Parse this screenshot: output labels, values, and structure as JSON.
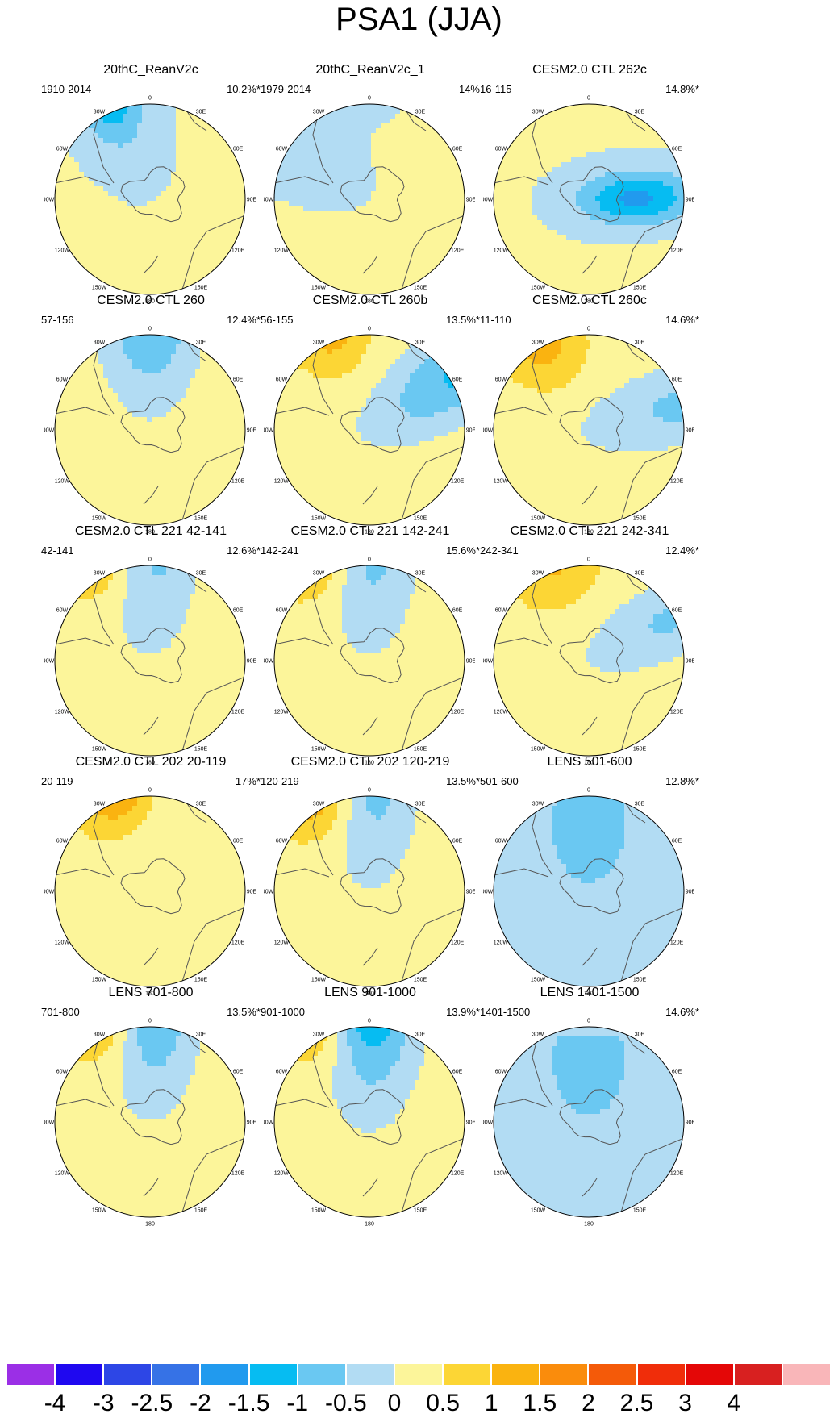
{
  "title": "PSA1 (JJA)",
  "lon_labels": [
    "0",
    "30E",
    "60E",
    "90E",
    "120E",
    "150E",
    "180",
    "150W",
    "120W",
    "90W",
    "60W",
    "30W"
  ],
  "colors": {
    "neg": [
      "#9b2fe6",
      "#1f08f0",
      "#2d46e6",
      "#3672e6",
      "#219aee",
      "#06bcf2",
      "#6ac8f2",
      "#b2dcf3"
    ],
    "pos": [
      "#fcf59a",
      "#fcd635",
      "#fab310",
      "#fa8c0c",
      "#f45a09",
      "#f02d0a",
      "#e40707",
      "#d82020",
      "#f9b6b9"
    ],
    "land": "#555555"
  },
  "colorbar": {
    "labels": [
      "-4",
      "-3",
      "-2.5",
      "-2",
      "-1.5",
      "-1",
      "-0.5",
      "0",
      "0.5",
      "1",
      "1.5",
      "2",
      "2.5",
      "3",
      "4"
    ],
    "colors": [
      "#9b2fe6",
      "#1f08f0",
      "#2d46e6",
      "#3672e6",
      "#219aee",
      "#06bcf2",
      "#6ac8f2",
      "#b2dcf3",
      "#fcf59a",
      "#fcd635",
      "#fab310",
      "#fa8c0c",
      "#f45a09",
      "#f02d0a",
      "#e40707",
      "#d82020",
      "#f9b6b9"
    ]
  },
  "panels": [
    {
      "title": "20thC_ReanV2c",
      "range": "1910-2014",
      "pct": "10.2%*",
      "field": {
        "bg": 0.02,
        "blobs": [
          [
            -1.2,
            0.0,
            3.0,
            0.68,
            0.34
          ],
          [
            -1.0,
            -2.5,
            4.4,
            0.72,
            0.42
          ],
          [
            -1.9,
            1.52,
            3.0,
            0.55,
            0.2
          ],
          [
            2.2,
            -1.25,
            2.7,
            0.38,
            0.14
          ],
          [
            -1.6,
            -0.4,
            1.3,
            0.45,
            0.22
          ]
        ]
      }
    },
    {
      "title": "20thC_ReanV2c_1",
      "range": "1979-2014",
      "pct": "14%",
      "field": {
        "bg": 0.05,
        "blobs": [
          [
            -1.3,
            0.0,
            3.0,
            0.88,
            0.32
          ],
          [
            -3.0,
            -1.75,
            3.75,
            0.5,
            0.25
          ],
          [
            2.6,
            -1.15,
            2.2,
            0.4,
            0.14
          ],
          [
            1.2,
            2.4,
            2.2,
            0.5,
            0.22
          ],
          [
            -0.7,
            -1.0,
            1.4,
            0.6,
            0.25
          ]
        ]
      }
    },
    {
      "title": "CESM2.0 CTL 262c",
      "range": "16-115",
      "pct": "14.8%*",
      "field": {
        "bg": 0.05,
        "blobs": [
          [
            -1.7,
            0.0,
            3.0,
            0.65,
            0.28
          ],
          [
            -1.7,
            1.55,
            0.5,
            0.42,
            0.2
          ],
          [
            -2.4,
            -1.65,
            3.65,
            0.6,
            0.22
          ],
          [
            3.6,
            -1.35,
            2.3,
            0.36,
            0.14
          ],
          [
            1.2,
            2.35,
            2.0,
            0.5,
            0.22
          ]
        ]
      }
    },
    {
      "title": "CESM2.0 CTL 260",
      "range": "57-156",
      "pct": "12.4%*",
      "field": {
        "bg": 0.3,
        "blobs": [
          [
            -1.5,
            0.0,
            1.4,
            0.72,
            0.34
          ],
          [
            -1.9,
            1.58,
            2.85,
            0.45,
            0.25
          ],
          [
            2.6,
            -1.15,
            2.05,
            0.38,
            0.14
          ],
          [
            -2.3,
            -0.85,
            4.2,
            0.42,
            0.2
          ],
          [
            1.0,
            0.6,
            3.6,
            0.55,
            0.3
          ]
        ]
      }
    },
    {
      "title": "CESM2.0 CTL 260b",
      "range": "56-155",
      "pct": "13.5%*",
      "field": {
        "bg": 0.3,
        "blobs": [
          [
            -1.4,
            1.0,
            1.2,
            0.75,
            0.3
          ],
          [
            -1.6,
            1.45,
            2.75,
            0.45,
            0.22
          ],
          [
            1.4,
            -0.4,
            1.4,
            0.42,
            0.26
          ],
          [
            -3.6,
            -0.55,
            4.05,
            0.38,
            0.22
          ],
          [
            1.4,
            0.62,
            3.6,
            0.55,
            0.3
          ]
        ]
      }
    },
    {
      "title": "CESM2.0 CTL 260c",
      "range": "11-110",
      "pct": "14.6%*",
      "field": {
        "bg": 0.35,
        "blobs": [
          [
            -1.0,
            1.3,
            1.2,
            0.9,
            0.3
          ],
          [
            -1.55,
            1.5,
            2.65,
            0.42,
            0.24
          ],
          [
            1.5,
            -0.5,
            1.4,
            0.45,
            0.26
          ],
          [
            -3.5,
            -0.6,
            4.1,
            0.38,
            0.2
          ],
          [
            2.5,
            0.75,
            3.8,
            0.65,
            0.3
          ]
        ]
      }
    },
    {
      "title": "CESM2.0 CTL 221 42-141",
      "range": "42-141",
      "pct": "12.6%*",
      "field": {
        "bg": 0.35,
        "blobs": [
          [
            -1.1,
            0.0,
            1.3,
            0.82,
            0.34
          ],
          [
            -1.5,
            1.25,
            2.75,
            0.43,
            0.2
          ],
          [
            1.5,
            -0.45,
            1.5,
            0.42,
            0.28
          ],
          [
            -3.3,
            -0.55,
            3.9,
            0.38,
            0.18
          ],
          [
            1.8,
            0.7,
            3.9,
            0.55,
            0.32
          ]
        ]
      }
    },
    {
      "title": "CESM2.0 CTL 221 142-241",
      "range": "142-241",
      "pct": "15.6%*",
      "field": {
        "bg": 0.35,
        "blobs": [
          [
            -1.1,
            0.0,
            1.3,
            0.82,
            0.34
          ],
          [
            -2.0,
            1.5,
            2.55,
            0.43,
            0.2
          ],
          [
            1.4,
            -0.5,
            1.5,
            0.42,
            0.28
          ],
          [
            -3.6,
            -0.5,
            4.3,
            0.38,
            0.2
          ],
          [
            2.1,
            0.6,
            3.9,
            0.55,
            0.32
          ]
        ]
      }
    },
    {
      "title": "CESM2.0 CTL 221 242-341",
      "range": "242-341",
      "pct": "12.4%*",
      "field": {
        "bg": 0.4,
        "blobs": [
          [
            -1.0,
            1.1,
            1.1,
            0.82,
            0.3
          ],
          [
            -1.4,
            1.55,
            2.75,
            0.43,
            0.2
          ],
          [
            1.4,
            -0.35,
            1.5,
            0.42,
            0.28
          ],
          [
            -3.6,
            -0.3,
            4.3,
            0.38,
            0.2
          ],
          [
            2.3,
            0.75,
            4.0,
            0.55,
            0.3
          ]
        ]
      }
    },
    {
      "title": "CESM2.0 CTL 202 20-119",
      "range": "20-119",
      "pct": "17%*",
      "field": {
        "bg": 0.35,
        "blobs": [
          [
            -1.0,
            0.0,
            1.3,
            0.82,
            0.34
          ],
          [
            -1.6,
            1.3,
            2.65,
            0.43,
            0.2
          ],
          [
            2.2,
            -0.25,
            1.3,
            0.45,
            0.3
          ],
          [
            -3.4,
            -0.25,
            4.3,
            0.38,
            0.2
          ],
          [
            2.0,
            0.8,
            4.1,
            0.55,
            0.3
          ]
        ]
      }
    },
    {
      "title": "CESM2.0 CTL 202 120-219",
      "range": "120-219",
      "pct": "13.5%*",
      "field": {
        "bg": 0.35,
        "blobs": [
          [
            -1.2,
            0.0,
            1.3,
            0.82,
            0.34
          ],
          [
            -2.0,
            1.5,
            2.6,
            0.43,
            0.2
          ],
          [
            1.7,
            -0.5,
            1.4,
            0.42,
            0.28
          ],
          [
            -3.3,
            -0.5,
            4.2,
            0.38,
            0.2
          ],
          [
            1.9,
            0.7,
            3.9,
            0.55,
            0.32
          ]
        ]
      }
    },
    {
      "title": "LENS 501-600",
      "range": "501-600",
      "pct": "12.8%*",
      "field": {
        "bg": 0.0,
        "blobs": [
          [
            -1.7,
            0.0,
            1.3,
            0.78,
            0.34
          ],
          [
            -1.3,
            -0.5,
            2.5,
            0.35,
            0.26
          ],
          [
            1.6,
            0.0,
            1.4,
            0.42,
            0.28
          ],
          [
            -1.4,
            0.9,
            3.1,
            0.5,
            0.25
          ],
          [
            2.6,
            0.7,
            4.2,
            0.65,
            0.24
          ]
        ]
      }
    },
    {
      "title": "LENS 701-800",
      "range": "701-800",
      "pct": "13.5%*",
      "field": {
        "bg": 0.3,
        "blobs": [
          [
            -1.6,
            0.0,
            1.4,
            0.76,
            0.32
          ],
          [
            -1.3,
            1.5,
            2.55,
            0.42,
            0.22
          ],
          [
            1.4,
            -0.45,
            1.4,
            0.42,
            0.28
          ],
          [
            -3.4,
            -0.5,
            4.0,
            0.38,
            0.2
          ],
          [
            1.9,
            0.7,
            3.9,
            0.55,
            0.32
          ]
        ]
      }
    },
    {
      "title": "LENS 901-1000",
      "range": "901-1000",
      "pct": "13.9%*",
      "field": {
        "bg": 0.25,
        "blobs": [
          [
            -1.9,
            0.0,
            1.4,
            0.75,
            0.32
          ],
          [
            -1.5,
            1.55,
            2.45,
            0.42,
            0.22
          ],
          [
            1.3,
            -0.5,
            1.4,
            0.42,
            0.28
          ],
          [
            -3.6,
            -0.55,
            4.0,
            0.38,
            0.2
          ],
          [
            1.7,
            0.6,
            3.8,
            0.55,
            0.32
          ]
        ]
      }
    },
    {
      "title": "LENS 1401-1500",
      "range": "1401-1500",
      "pct": "14.6%*",
      "field": {
        "bg": 0.0,
        "blobs": [
          [
            -1.8,
            0.0,
            1.3,
            0.78,
            0.34
          ],
          [
            -1.4,
            -0.4,
            2.6,
            0.35,
            0.25
          ],
          [
            2.1,
            0.0,
            1.4,
            0.42,
            0.28
          ],
          [
            -3.2,
            0.5,
            3.3,
            0.4,
            0.18
          ],
          [
            2.4,
            0.75,
            4.2,
            0.6,
            0.24
          ]
        ]
      }
    }
  ]
}
